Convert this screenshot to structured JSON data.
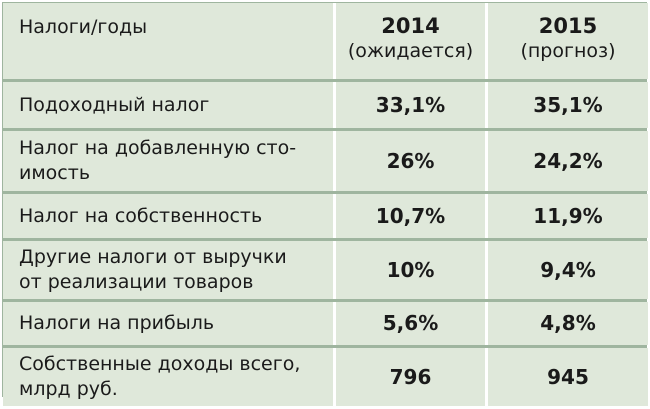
{
  "table": {
    "header": {
      "label": "Налоги/годы",
      "col1_year": "2014",
      "col1_note": "(ожидается)",
      "col2_year": "2015",
      "col2_note": "(прогноз)"
    },
    "rows": [
      {
        "label_line1": "Подоходный налог",
        "label_line2": "",
        "v2014": "33,1%",
        "v2015": "35,1%"
      },
      {
        "label_line1": "Налог на добавленную сто-",
        "label_line2": "имость",
        "v2014": "26%",
        "v2015": "24,2%"
      },
      {
        "label_line1": "Налог на собственность",
        "label_line2": "",
        "v2014": "10,7%",
        "v2015": "11,9%"
      },
      {
        "label_line1": "Другие налоги от выручки",
        "label_line2": "от реализации товаров",
        "v2014": "10%",
        "v2015": "9,4%"
      },
      {
        "label_line1": "Налоги на прибыль",
        "label_line2": "",
        "v2014": "5,6%",
        "v2015": "4,8%"
      },
      {
        "label_line1": "Собственные доходы всего,",
        "label_line2": "млрд руб.",
        "v2014": "796",
        "v2015": "945"
      }
    ]
  },
  "colors": {
    "cell_background": "#dfe8da",
    "row_separator": "#9fb59f",
    "column_separator": "#ffffff"
  }
}
